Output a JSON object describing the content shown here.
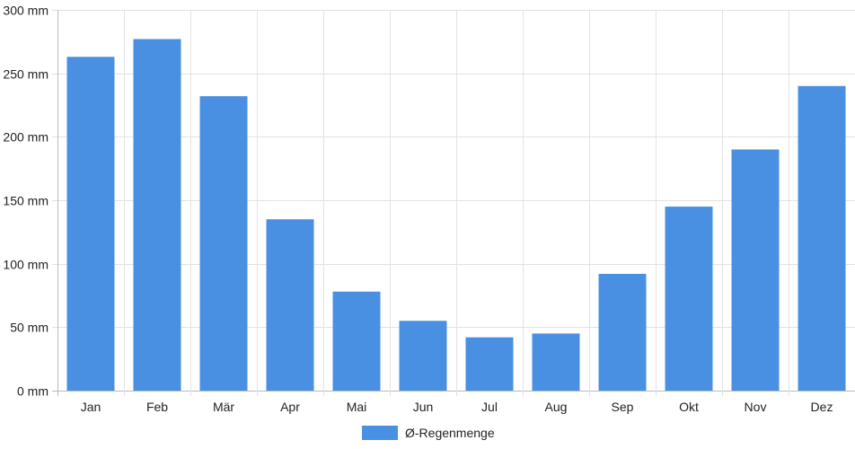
{
  "chart_data": {
    "type": "bar",
    "categories": [
      "Jan",
      "Feb",
      "Mär",
      "Apr",
      "Mai",
      "Jun",
      "Jul",
      "Aug",
      "Sep",
      "Okt",
      "Nov",
      "Dez"
    ],
    "series": [
      {
        "name": "Ø-Regenmenge",
        "values": [
          263,
          277,
          232,
          135,
          78,
          55,
          42,
          45,
          92,
          145,
          190,
          240
        ]
      }
    ],
    "ylim": [
      0,
      300
    ],
    "yticks": [
      0,
      50,
      100,
      150,
      200,
      250,
      300
    ],
    "unit": "mm",
    "grid": true,
    "legend_position": "bottom",
    "colors": {
      "bar": "#4a90e2",
      "grid": "#e2e2e2",
      "axis": "#bbbbbb"
    }
  }
}
